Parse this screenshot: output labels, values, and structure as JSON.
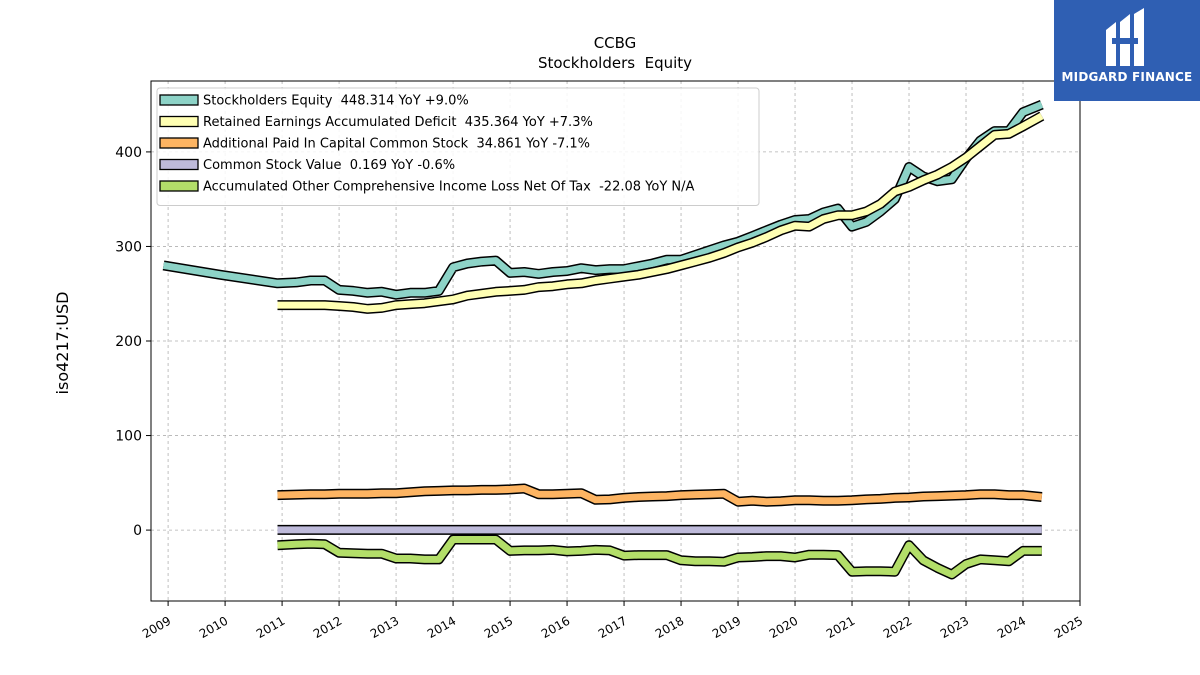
{
  "chart_data": {
    "type": "line",
    "title": "CCBG",
    "subtitle": "Stockholders  Equity",
    "ylabel": "iso4217:USD",
    "xlabel": "",
    "xlim": [
      2008.7,
      2025
    ],
    "ylim": [
      -75,
      475
    ],
    "x_ticks": [
      "2009",
      "2010",
      "2011",
      "2012",
      "2013",
      "2014",
      "2015",
      "2016",
      "2017",
      "2018",
      "2019",
      "2020",
      "2021",
      "2022",
      "2023",
      "2024",
      "2025"
    ],
    "y_ticks": [
      0,
      100,
      200,
      300,
      400
    ],
    "grid": true,
    "legend_position": "top-left",
    "series": [
      {
        "name": "Stockholders Equity  448.314 YoY +9.0%",
        "color": "#8dd3c7",
        "points": [
          [
            2008.92,
            280
          ],
          [
            2009.92,
            270
          ],
          [
            2010.92,
            261
          ],
          [
            2011.25,
            262
          ],
          [
            2011.5,
            264
          ],
          [
            2011.75,
            264
          ],
          [
            2012.0,
            254
          ],
          [
            2012.25,
            253
          ],
          [
            2012.5,
            251
          ],
          [
            2012.75,
            252
          ],
          [
            2013.0,
            249
          ],
          [
            2013.25,
            251
          ],
          [
            2013.5,
            251
          ],
          [
            2013.75,
            253
          ],
          [
            2014.0,
            278
          ],
          [
            2014.25,
            282
          ],
          [
            2014.5,
            284
          ],
          [
            2014.75,
            285
          ],
          [
            2015.0,
            272
          ],
          [
            2015.25,
            273
          ],
          [
            2015.5,
            271
          ],
          [
            2015.75,
            273
          ],
          [
            2016.0,
            274
          ],
          [
            2016.25,
            277
          ],
          [
            2016.5,
            275
          ],
          [
            2016.75,
            276
          ],
          [
            2017.0,
            276
          ],
          [
            2017.25,
            279
          ],
          [
            2017.5,
            282
          ],
          [
            2017.75,
            286
          ],
          [
            2018.0,
            286
          ],
          [
            2018.25,
            291
          ],
          [
            2018.5,
            296
          ],
          [
            2018.75,
            301
          ],
          [
            2019.0,
            305
          ],
          [
            2019.25,
            311
          ],
          [
            2019.5,
            317
          ],
          [
            2019.75,
            323
          ],
          [
            2020.0,
            328
          ],
          [
            2020.25,
            329
          ],
          [
            2020.5,
            336
          ],
          [
            2020.75,
            340
          ],
          [
            2021.0,
            321
          ],
          [
            2021.25,
            326
          ],
          [
            2021.5,
            337
          ],
          [
            2021.75,
            350
          ],
          [
            2022.0,
            384
          ],
          [
            2022.25,
            374
          ],
          [
            2022.5,
            369
          ],
          [
            2022.75,
            371
          ],
          [
            2023.0,
            393
          ],
          [
            2023.25,
            412
          ],
          [
            2023.5,
            422
          ],
          [
            2023.75,
            422
          ],
          [
            2024.0,
            442
          ],
          [
            2024.33,
            450
          ]
        ]
      },
      {
        "name": "Retained Earnings Accumulated Deficit  435.364 YoY +7.3%",
        "color": "#ffffb3",
        "points": [
          [
            2010.92,
            238
          ],
          [
            2011.25,
            238
          ],
          [
            2011.5,
            238
          ],
          [
            2011.75,
            238
          ],
          [
            2012.0,
            237
          ],
          [
            2012.25,
            236
          ],
          [
            2012.5,
            234
          ],
          [
            2012.75,
            235
          ],
          [
            2013.0,
            238
          ],
          [
            2013.25,
            239
          ],
          [
            2013.5,
            240
          ],
          [
            2013.75,
            242
          ],
          [
            2014.0,
            244
          ],
          [
            2014.25,
            248
          ],
          [
            2014.5,
            250
          ],
          [
            2014.75,
            252
          ],
          [
            2015.0,
            253
          ],
          [
            2015.25,
            254
          ],
          [
            2015.5,
            257
          ],
          [
            2015.75,
            258
          ],
          [
            2016.0,
            260
          ],
          [
            2016.25,
            261
          ],
          [
            2016.5,
            264
          ],
          [
            2016.75,
            266
          ],
          [
            2017.0,
            268
          ],
          [
            2017.25,
            270
          ],
          [
            2017.5,
            273
          ],
          [
            2017.75,
            276
          ],
          [
            2018.0,
            280
          ],
          [
            2018.25,
            284
          ],
          [
            2018.5,
            288
          ],
          [
            2018.75,
            293
          ],
          [
            2019.0,
            299
          ],
          [
            2019.25,
            304
          ],
          [
            2019.5,
            310
          ],
          [
            2019.75,
            317
          ],
          [
            2020.0,
            322
          ],
          [
            2020.25,
            321
          ],
          [
            2020.5,
            329
          ],
          [
            2020.75,
            333
          ],
          [
            2021.0,
            333
          ],
          [
            2021.25,
            337
          ],
          [
            2021.5,
            345
          ],
          [
            2021.75,
            358
          ],
          [
            2022.0,
            363
          ],
          [
            2022.25,
            370
          ],
          [
            2022.5,
            376
          ],
          [
            2022.75,
            384
          ],
          [
            2023.0,
            394
          ],
          [
            2023.25,
            406
          ],
          [
            2023.5,
            418
          ],
          [
            2023.75,
            419
          ],
          [
            2024.0,
            427
          ],
          [
            2024.33,
            438
          ]
        ]
      },
      {
        "name": "Additional Paid In Capital Common Stock  34.861 YoY -7.1%",
        "color": "#fdb462",
        "points": [
          [
            2010.92,
            37
          ],
          [
            2011.25,
            37.5
          ],
          [
            2011.5,
            38
          ],
          [
            2011.75,
            38
          ],
          [
            2012.0,
            38.5
          ],
          [
            2012.25,
            38.5
          ],
          [
            2012.5,
            38.5
          ],
          [
            2012.75,
            39
          ],
          [
            2013.0,
            39
          ],
          [
            2013.25,
            40
          ],
          [
            2013.5,
            41
          ],
          [
            2013.75,
            41.5
          ],
          [
            2014.0,
            42
          ],
          [
            2014.25,
            42
          ],
          [
            2014.5,
            42.5
          ],
          [
            2014.75,
            42.5
          ],
          [
            2015.0,
            43
          ],
          [
            2015.25,
            44
          ],
          [
            2015.5,
            38
          ],
          [
            2015.75,
            38
          ],
          [
            2016.0,
            38.5
          ],
          [
            2016.25,
            39
          ],
          [
            2016.5,
            32
          ],
          [
            2016.75,
            32.5
          ],
          [
            2017.0,
            34
          ],
          [
            2017.25,
            35
          ],
          [
            2017.5,
            35.5
          ],
          [
            2017.75,
            36
          ],
          [
            2018.0,
            37
          ],
          [
            2018.25,
            37.5
          ],
          [
            2018.5,
            38
          ],
          [
            2018.75,
            38.5
          ],
          [
            2019.0,
            30
          ],
          [
            2019.25,
            31
          ],
          [
            2019.5,
            30
          ],
          [
            2019.75,
            30.5
          ],
          [
            2020.0,
            31.5
          ],
          [
            2020.25,
            31.5
          ],
          [
            2020.5,
            31
          ],
          [
            2020.75,
            31
          ],
          [
            2021.0,
            31.5
          ],
          [
            2021.25,
            32.5
          ],
          [
            2021.5,
            33
          ],
          [
            2021.75,
            34
          ],
          [
            2022.0,
            34.5
          ],
          [
            2022.25,
            35.5
          ],
          [
            2022.5,
            36
          ],
          [
            2022.75,
            36.5
          ],
          [
            2023.0,
            37
          ],
          [
            2023.25,
            38
          ],
          [
            2023.5,
            38
          ],
          [
            2023.75,
            37
          ],
          [
            2024.0,
            37
          ],
          [
            2024.33,
            35
          ]
        ]
      },
      {
        "name": "Common Stock Value  0.169 YoY -0.6%",
        "color": "#bebada",
        "points": [
          [
            2010.92,
            0.17
          ],
          [
            2024.33,
            0.17
          ]
        ]
      },
      {
        "name": "Accumulated Other Comprehensive Income Loss Net Of Tax  -22.08 YoY N/A",
        "color": "#b3de69",
        "points": [
          [
            2010.92,
            -16
          ],
          [
            2011.25,
            -15
          ],
          [
            2011.5,
            -14.5
          ],
          [
            2011.75,
            -15
          ],
          [
            2012.0,
            -24
          ],
          [
            2012.25,
            -24.5
          ],
          [
            2012.5,
            -25
          ],
          [
            2012.75,
            -25
          ],
          [
            2013.0,
            -30
          ],
          [
            2013.25,
            -30
          ],
          [
            2013.5,
            -31
          ],
          [
            2013.75,
            -31
          ],
          [
            2014.0,
            -10
          ],
          [
            2014.25,
            -10
          ],
          [
            2014.5,
            -10
          ],
          [
            2014.75,
            -10
          ],
          [
            2015.0,
            -22
          ],
          [
            2015.25,
            -21.5
          ],
          [
            2015.5,
            -21.5
          ],
          [
            2015.75,
            -21
          ],
          [
            2016.0,
            -22.5
          ],
          [
            2016.25,
            -22
          ],
          [
            2016.5,
            -21
          ],
          [
            2016.75,
            -21.5
          ],
          [
            2017.0,
            -27
          ],
          [
            2017.25,
            -26.5
          ],
          [
            2017.5,
            -26.5
          ],
          [
            2017.75,
            -26.5
          ],
          [
            2018.0,
            -32
          ],
          [
            2018.25,
            -33
          ],
          [
            2018.5,
            -33
          ],
          [
            2018.75,
            -33.5
          ],
          [
            2019.0,
            -29
          ],
          [
            2019.25,
            -28.5
          ],
          [
            2019.5,
            -27.5
          ],
          [
            2019.75,
            -27.5
          ],
          [
            2020.0,
            -29
          ],
          [
            2020.25,
            -26
          ],
          [
            2020.5,
            -26
          ],
          [
            2020.75,
            -26.5
          ],
          [
            2021.0,
            -44
          ],
          [
            2021.25,
            -43.5
          ],
          [
            2021.5,
            -43.5
          ],
          [
            2021.75,
            -44
          ],
          [
            2022.0,
            -16
          ],
          [
            2022.25,
            -32
          ],
          [
            2022.5,
            -40
          ],
          [
            2022.75,
            -47
          ],
          [
            2023.0,
            -36
          ],
          [
            2023.25,
            -31
          ],
          [
            2023.5,
            -32
          ],
          [
            2023.75,
            -33
          ],
          [
            2024.0,
            -22
          ],
          [
            2024.33,
            -22
          ]
        ]
      }
    ]
  },
  "logo": {
    "text": "MIDGARD FINANCE",
    "background": "#2f5fb3"
  }
}
